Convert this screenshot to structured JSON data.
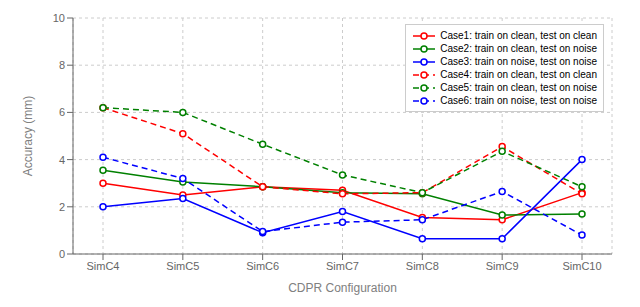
{
  "chart_data": {
    "type": "line",
    "categories": [
      "SimC4",
      "SimC5",
      "SimC6",
      "SimC7",
      "SimC8",
      "SimC9",
      "SimC10"
    ],
    "series": [
      {
        "name": "Case1: train on clean, test on clean",
        "color": "#ff0000",
        "line_style": "solid",
        "marker": "o",
        "values": [
          3.0,
          2.5,
          2.85,
          2.7,
          1.55,
          1.45,
          2.6
        ]
      },
      {
        "name": "Case2: train on clean, test on noise",
        "color": "#008000",
        "line_style": "solid",
        "marker": "o",
        "values": [
          3.55,
          3.05,
          2.85,
          2.6,
          2.55,
          1.65,
          1.7
        ]
      },
      {
        "name": "Case3: train on noise, test on noise",
        "color": "#0000ff",
        "line_style": "solid",
        "marker": "o",
        "values": [
          2.0,
          2.35,
          0.9,
          1.8,
          0.65,
          0.65,
          4.0
        ]
      },
      {
        "name": "Case4: train on clean, test on clean",
        "color": "#ff0000",
        "line_style": "dashed",
        "marker": "o",
        "values": [
          6.2,
          5.1,
          2.85,
          2.55,
          2.6,
          4.55,
          2.55
        ]
      },
      {
        "name": "Case5: train on clean, test on noise",
        "color": "#008000",
        "line_style": "dashed",
        "marker": "o",
        "values": [
          6.2,
          6.0,
          4.65,
          3.35,
          2.6,
          4.35,
          2.85
        ]
      },
      {
        "name": "Case6: train on noise, test on noise",
        "color": "#0000ff",
        "line_style": "dashed",
        "marker": "o",
        "values": [
          4.1,
          3.2,
          0.95,
          1.35,
          1.45,
          2.65,
          0.8
        ]
      }
    ],
    "xlabel": "CDPR Configuration",
    "ylabel": "Accuracy (mm)",
    "ylim": [
      0,
      10
    ],
    "yticks": [
      0,
      2,
      4,
      6,
      8,
      10
    ],
    "grid": true,
    "legend": "upper right"
  }
}
